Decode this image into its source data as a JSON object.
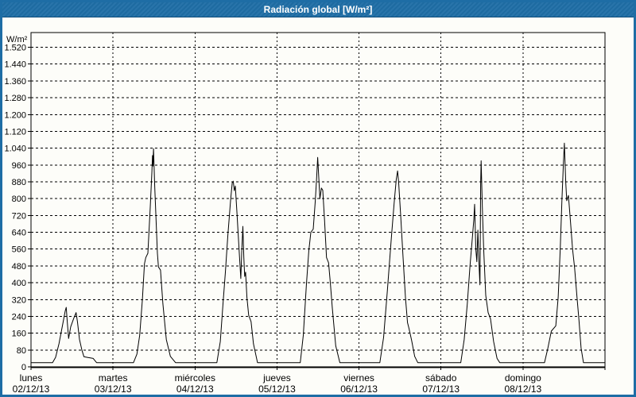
{
  "window": {
    "title": "Radiación global [W/m²]"
  },
  "colors": {
    "titlebar_bg": "#1f6ea6",
    "titlebar_text": "#ffffff",
    "window_border": "#1e6da5",
    "content_bg": "#fdfdf9",
    "line": "#000000",
    "grid": "#000000"
  },
  "chart_data": {
    "type": "line",
    "title": "Radiación global [W/m²]",
    "unit_label": "W/m²",
    "ylim": [
      0,
      1590
    ],
    "ytick_step": 80,
    "ytick_labels": [
      "0",
      "80",
      "160",
      "240",
      "320",
      "400",
      "480",
      "560",
      "640",
      "720",
      "800",
      "880",
      "960",
      "1.040",
      "1.120",
      "1.200",
      "1.280",
      "1.360",
      "1.440",
      "1.520"
    ],
    "grid": "dashed",
    "legend": "none",
    "x_categories": [
      {
        "day": "lunes",
        "date": "02/12/13"
      },
      {
        "day": "martes",
        "date": "03/12/13"
      },
      {
        "day": "miércoles",
        "date": "04/12/13"
      },
      {
        "day": "jueves",
        "date": "05/12/13"
      },
      {
        "day": "viernes",
        "date": "06/12/13"
      },
      {
        "day": "sábado",
        "date": "07/12/13"
      },
      {
        "day": "domingo",
        "date": "08/12/13"
      }
    ],
    "series": [
      {
        "name": "Radiación global",
        "unit": "W/m²",
        "daily_peaks": [
          283,
          1038,
          883,
          996,
          932,
          980,
          1064
        ],
        "days_points_hour_value": [
          [
            [
              0,
              20
            ],
            [
              6.3,
              20
            ],
            [
              7.2,
              45
            ],
            [
              8.2,
              110
            ],
            [
              9.2,
              195
            ],
            [
              10.0,
              265
            ],
            [
              10.3,
              283
            ],
            [
              10.6,
              215
            ],
            [
              11.0,
              135
            ],
            [
              11.6,
              190
            ],
            [
              12.5,
              230
            ],
            [
              13.2,
              258
            ],
            [
              13.6,
              215
            ],
            [
              14.2,
              130
            ],
            [
              14.9,
              80
            ],
            [
              15.5,
              48
            ],
            [
              16.5,
              45
            ],
            [
              18.2,
              40
            ],
            [
              19.2,
              20
            ],
            [
              24,
              20
            ]
          ],
          [
            [
              0,
              20
            ],
            [
              6.0,
              20
            ],
            [
              7.0,
              60
            ],
            [
              7.8,
              150
            ],
            [
              8.6,
              320
            ],
            [
              9.2,
              490
            ],
            [
              9.6,
              520
            ],
            [
              10.2,
              540
            ],
            [
              10.9,
              760
            ],
            [
              11.4,
              930
            ],
            [
              11.55,
              1005
            ],
            [
              11.7,
              955
            ],
            [
              11.85,
              1038
            ],
            [
              12.2,
              860
            ],
            [
              12.6,
              700
            ],
            [
              13.0,
              540
            ],
            [
              13.3,
              475
            ],
            [
              13.9,
              460
            ],
            [
              14.6,
              300
            ],
            [
              15.6,
              130
            ],
            [
              16.8,
              50
            ],
            [
              18.3,
              20
            ],
            [
              24,
              20
            ]
          ],
          [
            [
              0,
              20
            ],
            [
              6.4,
              20
            ],
            [
              7.4,
              120
            ],
            [
              8.2,
              300
            ],
            [
              8.9,
              450
            ],
            [
              9.6,
              620
            ],
            [
              10.4,
              790
            ],
            [
              10.9,
              875
            ],
            [
              11.2,
              883
            ],
            [
              11.5,
              838
            ],
            [
              11.8,
              860
            ],
            [
              12.3,
              730
            ],
            [
              12.9,
              560
            ],
            [
              13.4,
              420
            ],
            [
              13.7,
              560
            ],
            [
              14.0,
              668
            ],
            [
              14.3,
              520
            ],
            [
              14.55,
              430
            ],
            [
              14.8,
              450
            ],
            [
              15.2,
              330
            ],
            [
              15.7,
              245
            ],
            [
              16.4,
              215
            ],
            [
              17.1,
              110
            ],
            [
              18.3,
              20
            ],
            [
              24,
              20
            ]
          ],
          [
            [
              0,
              20
            ],
            [
              6.8,
              20
            ],
            [
              7.7,
              150
            ],
            [
              8.6,
              390
            ],
            [
              9.3,
              550
            ],
            [
              9.9,
              640
            ],
            [
              10.6,
              655
            ],
            [
              11.2,
              790
            ],
            [
              11.6,
              900
            ],
            [
              11.9,
              996
            ],
            [
              12.2,
              905
            ],
            [
              12.55,
              800
            ],
            [
              13.0,
              850
            ],
            [
              13.4,
              840
            ],
            [
              13.9,
              700
            ],
            [
              14.5,
              520
            ],
            [
              15.1,
              495
            ],
            [
              15.6,
              400
            ],
            [
              16.2,
              280
            ],
            [
              17.2,
              100
            ],
            [
              18.4,
              20
            ],
            [
              24,
              20
            ]
          ],
          [
            [
              0,
              20
            ],
            [
              6.1,
              20
            ],
            [
              7.2,
              140
            ],
            [
              8.3,
              360
            ],
            [
              9.4,
              600
            ],
            [
              10.3,
              780
            ],
            [
              10.9,
              890
            ],
            [
              11.3,
              932
            ],
            [
              11.6,
              880
            ],
            [
              12.2,
              720
            ],
            [
              12.9,
              520
            ],
            [
              13.6,
              330
            ],
            [
              14.2,
              210
            ],
            [
              14.6,
              185
            ],
            [
              15.4,
              125
            ],
            [
              16.3,
              50
            ],
            [
              17.2,
              20
            ],
            [
              24,
              20
            ]
          ],
          [
            [
              0,
              20
            ],
            [
              5.8,
              20
            ],
            [
              6.8,
              130
            ],
            [
              7.7,
              300
            ],
            [
              8.5,
              480
            ],
            [
              9.2,
              620
            ],
            [
              9.6,
              700
            ],
            [
              9.85,
              773
            ],
            [
              10.2,
              560
            ],
            [
              10.5,
              500
            ],
            [
              10.8,
              650
            ],
            [
              11.1,
              500
            ],
            [
              11.4,
              390
            ],
            [
              11.6,
              870
            ],
            [
              11.75,
              980
            ],
            [
              12.1,
              760
            ],
            [
              12.5,
              560
            ],
            [
              13.1,
              340
            ],
            [
              13.8,
              258
            ],
            [
              14.5,
              228
            ],
            [
              15.4,
              120
            ],
            [
              16.4,
              40
            ],
            [
              17.2,
              20
            ],
            [
              24,
              20
            ]
          ],
          [
            [
              0,
              20
            ],
            [
              6.3,
              20
            ],
            [
              7.3,
              90
            ],
            [
              8.3,
              170
            ],
            [
              9.6,
              195
            ],
            [
              10.3,
              330
            ],
            [
              10.9,
              560
            ],
            [
              11.4,
              790
            ],
            [
              11.8,
              960
            ],
            [
              12.1,
              1064
            ],
            [
              12.5,
              880
            ],
            [
              12.8,
              790
            ],
            [
              13.3,
              815
            ],
            [
              13.9,
              690
            ],
            [
              14.5,
              560
            ],
            [
              15.1,
              470
            ],
            [
              15.8,
              330
            ],
            [
              16.4,
              220
            ],
            [
              17.0,
              90
            ],
            [
              17.7,
              20
            ],
            [
              24,
              20
            ]
          ]
        ]
      }
    ]
  }
}
